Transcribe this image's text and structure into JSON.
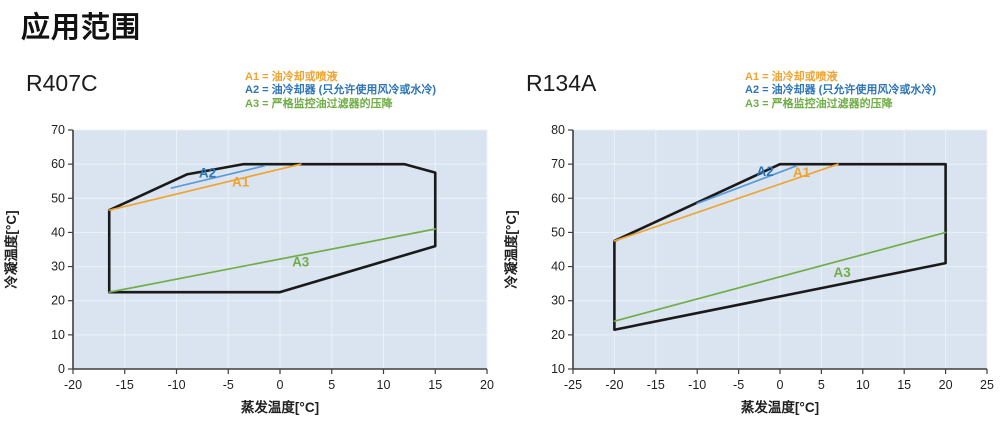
{
  "page": {
    "title": "应用范围"
  },
  "colors": {
    "title": "#111111",
    "envelope": "#1A1A1A",
    "plot_bg": "#D9E4F0",
    "grid": "#EBF1F8",
    "axis": "#3F3F3F",
    "tick_text": "#1F1F1F",
    "a1": "#F0A330",
    "a2_line": "#5B9BD5",
    "a2_text": "#2E75B6",
    "a3": "#70AD47"
  },
  "legend": {
    "items": [
      {
        "id": "a1",
        "label": "A1 = 油冷却或喷液",
        "color": "#F0A330"
      },
      {
        "id": "a2",
        "label": "A2 = 油冷却器 (只允许使用风冷或水冷)",
        "color": "#2E75B6"
      },
      {
        "id": "a3",
        "label": "A3 = 严格监控油过滤器的压降",
        "color": "#70AD47"
      }
    ]
  },
  "chart_data": [
    {
      "type": "line",
      "title": "R407C",
      "xlabel": "蒸发温度[°C]",
      "ylabel": "冷凝温度[°C]",
      "xlim": [
        -20,
        20
      ],
      "xstep": 5,
      "ylim": [
        0,
        70
      ],
      "ystep": 10,
      "grid": true,
      "envelope": [
        [
          -16.5,
          22.5
        ],
        [
          -16.5,
          46.5
        ],
        [
          -9,
          57
        ],
        [
          -3.5,
          60
        ],
        [
          12,
          60
        ],
        [
          15,
          57.5
        ],
        [
          15,
          36
        ],
        [
          0,
          22.5
        ]
      ],
      "series": [
        {
          "name": "A1",
          "color": "#F0A330",
          "label_color": "#F0A330",
          "points": [
            [
              -16.5,
              46.5
            ],
            [
              2,
              60
            ]
          ],
          "label_at": [
            -3.8,
            54.5
          ]
        },
        {
          "name": "A2",
          "color": "#5B9BD5",
          "label_color": "#2E75B6",
          "points": [
            [
              -10.5,
              53
            ],
            [
              -1.5,
              59.5
            ]
          ],
          "label_at": [
            -7,
            57.2
          ]
        },
        {
          "name": "A3",
          "color": "#70AD47",
          "label_color": "#70AD47",
          "points": [
            [
              -16.5,
              22.5
            ],
            [
              15,
              41
            ]
          ],
          "label_at": [
            2,
            31
          ]
        }
      ]
    },
    {
      "type": "line",
      "title": "R134A",
      "xlabel": "蒸发温度[°C]",
      "ylabel": "冷凝温度[°C]",
      "xlim": [
        -25,
        25
      ],
      "xstep": 5,
      "ylim": [
        10,
        80
      ],
      "ystep": 10,
      "grid": true,
      "envelope": [
        [
          -20,
          21.5
        ],
        [
          -20,
          47.5
        ],
        [
          0,
          70
        ],
        [
          20,
          70
        ],
        [
          20,
          41
        ]
      ],
      "series": [
        {
          "name": "A1",
          "color": "#F0A330",
          "label_color": "#F0A330",
          "points": [
            [
              -20,
              47.5
            ],
            [
              7,
              70
            ]
          ],
          "label_at": [
            2.6,
            67.3
          ]
        },
        {
          "name": "A2",
          "color": "#5B9BD5",
          "label_color": "#2E75B6",
          "points": [
            [
              -10,
              58.5
            ],
            [
              2,
              69.5
            ]
          ],
          "label_at": [
            -1.8,
            67.6
          ]
        },
        {
          "name": "A3",
          "color": "#70AD47",
          "label_color": "#70AD47",
          "points": [
            [
              -20,
              24
            ],
            [
              20,
              50
            ]
          ],
          "label_at": [
            7.5,
            38
          ]
        }
      ]
    }
  ]
}
